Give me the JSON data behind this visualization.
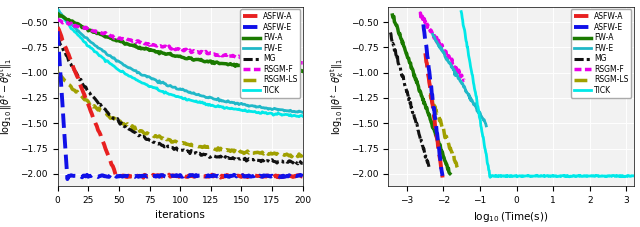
{
  "ylabel": "$\\log_{10}\\|\\theta^t - \\theta_k^{\\mathrm{gt}}\\|_1$",
  "xlabel_left": "iterations",
  "xlabel_right": "$\\log_{10}(\\mathrm{Time(s)})$",
  "ylim": [
    -2.12,
    -0.35
  ],
  "xlim_left": [
    0,
    200
  ],
  "xlim_right": [
    -3.5,
    3.2
  ],
  "yticks": [
    -2.0,
    -1.75,
    -1.5,
    -1.25,
    -1.0,
    -0.75,
    -0.5
  ],
  "legend_labels": [
    "ASFW-A",
    "ASFW-E",
    "FW-A",
    "FW-E",
    "MG",
    "RSGM-F",
    "RSGM-LS",
    "TICK"
  ],
  "colors": {
    "ASFW-A": "#e82020",
    "ASFW-E": "#1010e8",
    "FW-A": "#1a7a00",
    "FW-E": "#20b8c8",
    "MG": "#111111",
    "RSGM-F": "#e800e8",
    "RSGM-LS": "#a0a000",
    "TICK": "#00e8e8"
  }
}
